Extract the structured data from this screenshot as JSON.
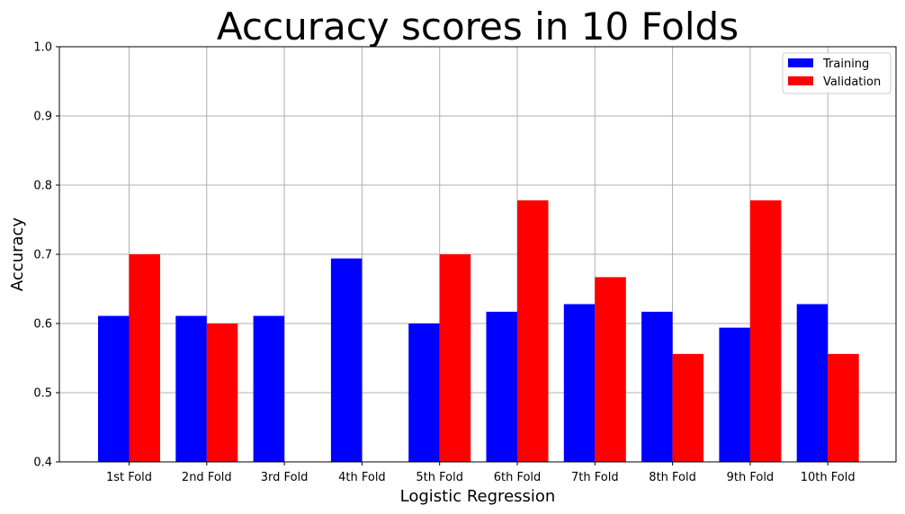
{
  "chart_data": {
    "type": "bar",
    "title": "Accuracy scores in 10 Folds",
    "xlabel": "Logistic Regression",
    "ylabel": "Accuracy",
    "ylim": [
      0.4,
      1.0
    ],
    "yticks": [
      "0.4",
      "0.5",
      "0.6",
      "0.7",
      "0.8",
      "0.9",
      "1.0"
    ],
    "categories": [
      "1st Fold",
      "2nd Fold",
      "3rd Fold",
      "4th Fold",
      "5th Fold",
      "6th Fold",
      "7th Fold",
      "8th Fold",
      "9th Fold",
      "10th Fold"
    ],
    "series": [
      {
        "name": "Training",
        "color": "#0000ff",
        "values": [
          0.611,
          0.611,
          0.611,
          0.694,
          0.6,
          0.617,
          0.628,
          0.617,
          0.594,
          0.628
        ]
      },
      {
        "name": "Validation",
        "color": "#ff0000",
        "values": [
          0.7,
          0.6,
          0.4,
          0.4,
          0.7,
          0.778,
          0.667,
          0.556,
          0.778,
          0.556
        ]
      }
    ],
    "grid": true,
    "legend_position": "top-right"
  }
}
